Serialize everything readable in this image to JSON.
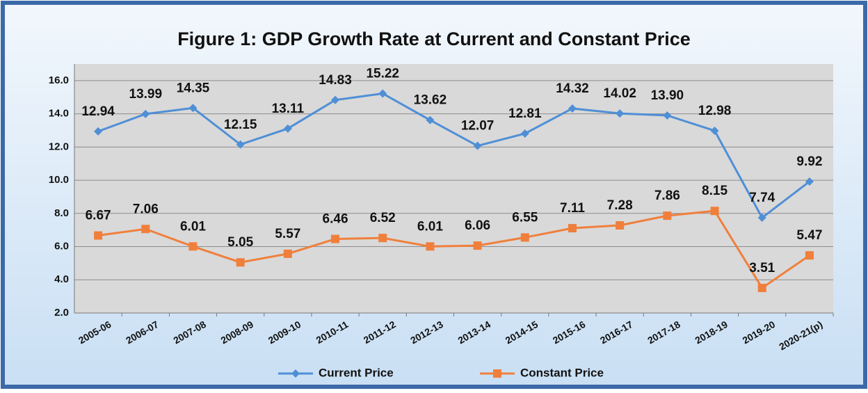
{
  "chart_data": {
    "type": "line",
    "title": "Figure 1: GDP Growth Rate at Current and Constant Price",
    "categories": [
      "2005-06",
      "2006-07",
      "2007-08",
      "2008-09",
      "2009-10",
      "2010-11",
      "2011-12",
      "2012-13",
      "2013-14",
      "2014-15",
      "2015-16",
      "2016-17",
      "2017-18",
      "2018-19",
      "2019-20",
      "2020-21(p)"
    ],
    "series": [
      {
        "name": "Current Price",
        "color": "#4f8fd6",
        "marker": "diamond",
        "values": [
          12.94,
          13.99,
          14.35,
          12.15,
          13.11,
          14.83,
          15.22,
          13.62,
          12.07,
          12.81,
          14.32,
          14.02,
          13.9,
          12.98,
          7.74,
          9.92
        ],
        "value_labels": [
          "12.94",
          "13.99",
          "14.35",
          "12.15",
          "13.11",
          "14.83",
          "15.22",
          "13.62",
          "12.07",
          "12.81",
          "14.32",
          "14.02",
          "13.90",
          "12.98",
          "7.74",
          "9.92"
        ]
      },
      {
        "name": "Constant Price",
        "color": "#f07f3c",
        "marker": "square",
        "values": [
          6.67,
          7.06,
          6.01,
          5.05,
          5.57,
          6.46,
          6.52,
          6.01,
          6.06,
          6.55,
          7.11,
          7.28,
          7.86,
          8.15,
          3.51,
          5.47
        ]
      }
    ],
    "ylim": [
      2,
      17
    ],
    "yticks": [
      {
        "value": 2,
        "label": "2.0"
      },
      {
        "value": 4,
        "label": "4.0"
      },
      {
        "value": 6,
        "label": "6.0"
      },
      {
        "value": 8,
        "label": "8.0"
      },
      {
        "value": 10,
        "label": "10.0"
      },
      {
        "value": 12,
        "label": "12.0"
      },
      {
        "value": 14,
        "label": "14.0"
      },
      {
        "value": 16,
        "label": "16.0"
      }
    ],
    "grid": true,
    "legend": "bottom"
  }
}
